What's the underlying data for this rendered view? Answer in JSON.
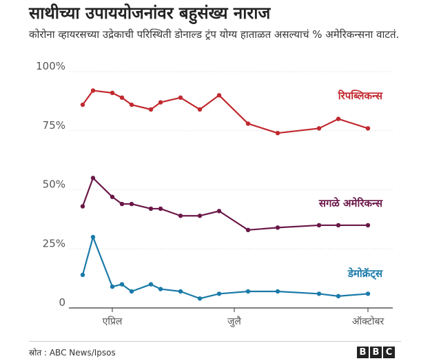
{
  "title": "साथीच्या उपाययोजनांवर बहुसंख्य नाराज",
  "subtitle": "कोरोना व्हायरसच्या उद्रेकाची परिस्थिती डोनाल्ड ट्रंप योग्य हाताळत असल्याचं % अमेरिकन्सना वाटतं.",
  "source": "स्रोत : ABC News/Ipsos",
  "brand": {
    "letters": [
      "B",
      "B",
      "C"
    ]
  },
  "colors": {
    "republicans": "#c0292f",
    "all_americans": "#6a1848",
    "democrats": "#1a7aa9",
    "axis": "#555555",
    "grid": "#dddddd"
  },
  "chart_data": {
    "type": "line",
    "title": "साथीच्या उपाययोजनांवर बहुसंख्य नाराज",
    "subtitle": "कोरोना व्हायरसच्या उद्रेकाची परिस्थिती डोनाल्ड ट्रंप योग्य हाताळत असल्याचं % अमेरिकन्सना वाटतं.",
    "x_tick_labels": [
      "एप्रिल",
      "जुलै",
      "ऑक्टोबर"
    ],
    "x_tick_positions": [
      3,
      13,
      21
    ],
    "y_tick_labels": [
      "100%",
      "75%",
      "50%",
      "25%",
      "0"
    ],
    "y_tick_values": [
      100,
      75,
      50,
      25,
      0
    ],
    "ylim": [
      0,
      100
    ],
    "grid": true,
    "series": [
      {
        "name": "रिपब्लिकन्स",
        "color": "#c0292f",
        "x": [
          0,
          1,
          2,
          3,
          4,
          5,
          6,
          7,
          8,
          9,
          10,
          11,
          12,
          13,
          14
        ],
        "values": [
          86,
          92,
          91,
          89,
          86,
          84,
          87,
          89,
          84,
          90,
          78,
          74,
          76,
          80,
          76
        ]
      },
      {
        "name": "सगळे अमेरिकन्स",
        "color": "#6a1848",
        "x": [
          0,
          1,
          2,
          3,
          4,
          5,
          6,
          7,
          8,
          9,
          10,
          11,
          12,
          13,
          14
        ],
        "values": [
          43,
          55,
          47,
          44,
          44,
          42,
          42,
          39,
          39,
          41,
          33,
          34,
          35,
          35,
          35
        ]
      },
      {
        "name": "डेमोक्रॅट्स",
        "color": "#1a7aa9",
        "x": [
          0,
          1,
          2,
          3,
          4,
          5,
          6,
          7,
          8,
          9,
          10,
          11,
          12,
          13,
          14
        ],
        "values": [
          14,
          30,
          9,
          10,
          7,
          10,
          8,
          7,
          4,
          6,
          7,
          7,
          6,
          5,
          6
        ]
      }
    ]
  }
}
